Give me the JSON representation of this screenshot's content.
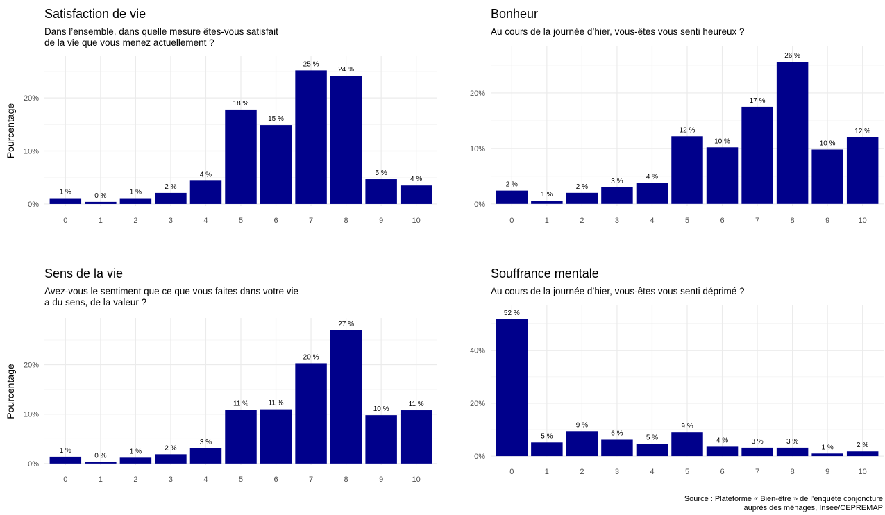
{
  "caption": {
    "line1": "Source : Plateforme « Bien-être » de l’enquête conjoncture",
    "line2": "auprès des ménages, Insee/CEPREMAP"
  },
  "chart_data": [
    {
      "type": "bar",
      "title": "Satisfaction de vie",
      "subtitle": [
        "Dans l’ensemble, dans quelle mesure êtes-vous satisfait",
        " de la vie que vous menez actuellement ?"
      ],
      "ylabel": "Pourcentage",
      "xlabel": "",
      "categories": [
        "0",
        "1",
        "2",
        "3",
        "4",
        "5",
        "6",
        "7",
        "8",
        "9",
        "10"
      ],
      "values": [
        1.1,
        0.4,
        1.1,
        2.1,
        4.4,
        17.8,
        14.9,
        25.2,
        24.2,
        4.7,
        3.5
      ],
      "labels": [
        "1 %",
        "0 %",
        "1 %",
        "2 %",
        "4 %",
        "18 %",
        "15 %",
        "25 %",
        "24 %",
        "5 %",
        "4 %"
      ],
      "yticks": [
        0,
        10,
        20
      ],
      "ytick_labels": [
        "0%",
        "10%",
        "20%"
      ],
      "ylim": [
        -0.4,
        28
      ],
      "color": "#00008B",
      "grid": true
    },
    {
      "type": "bar",
      "title": "Bonheur",
      "subtitle": [
        "Au cours de la journée d’hier, vous-êtes vous senti heureux ?"
      ],
      "ylabel": "",
      "xlabel": "",
      "categories": [
        "0",
        "1",
        "2",
        "3",
        "4",
        "5",
        "6",
        "7",
        "8",
        "9",
        "10"
      ],
      "values": [
        2.4,
        0.6,
        2.0,
        3.0,
        3.8,
        12.2,
        10.2,
        17.5,
        25.6,
        9.8,
        12.0
      ],
      "labels": [
        "2 %",
        "1 %",
        "2 %",
        "3 %",
        "4 %",
        "12 %",
        "10 %",
        "17 %",
        "26 %",
        "10 %",
        "12 %"
      ],
      "yticks": [
        0,
        10,
        20
      ],
      "ytick_labels": [
        "0%",
        "10%",
        "20%"
      ],
      "ylim": [
        -0.4,
        28.5
      ],
      "color": "#00008B",
      "grid": true
    },
    {
      "type": "bar",
      "title": "Sens de la vie",
      "subtitle": [
        "Avez-vous le sentiment que ce que vous faites dans votre vie",
        " a du sens, de la valeur ?"
      ],
      "ylabel": "Pourcentage",
      "xlabel": "",
      "categories": [
        "0",
        "1",
        "2",
        "3",
        "4",
        "5",
        "6",
        "7",
        "8",
        "9",
        "10"
      ],
      "values": [
        1.4,
        0.3,
        1.2,
        1.9,
        3.1,
        10.9,
        11.0,
        20.3,
        27.0,
        9.8,
        10.8
      ],
      "labels": [
        "1 %",
        "0 %",
        "1 %",
        "2 %",
        "3 %",
        "11 %",
        "11 %",
        "20 %",
        "27 %",
        "10 %",
        "11 %"
      ],
      "yticks": [
        0,
        10,
        20
      ],
      "ytick_labels": [
        "0%",
        "10%",
        "20%"
      ],
      "ylim": [
        -0.3,
        29.5
      ],
      "color": "#00008B",
      "grid": true
    },
    {
      "type": "bar",
      "title": "Souffrance mentale",
      "subtitle": [
        "Au cours de la journée d’hier, vous-êtes vous senti déprimé ?"
      ],
      "ylabel": "",
      "xlabel": "",
      "categories": [
        "0",
        "1",
        "2",
        "3",
        "4",
        "5",
        "6",
        "7",
        "8",
        "9",
        "10"
      ],
      "values": [
        51.8,
        5.2,
        9.4,
        6.2,
        4.6,
        8.9,
        3.6,
        3.2,
        3.2,
        1.0,
        1.8
      ],
      "labels": [
        "52 %",
        "5 %",
        "9 %",
        "6 %",
        "5 %",
        "9 %",
        "4 %",
        "3 %",
        "3 %",
        "1 %",
        "2 %"
      ],
      "yticks": [
        0,
        20,
        40
      ],
      "ytick_labels": [
        "0%",
        "20%",
        "40%"
      ],
      "ylim": [
        -0.5,
        57
      ],
      "color": "#00008B",
      "grid": true
    }
  ]
}
